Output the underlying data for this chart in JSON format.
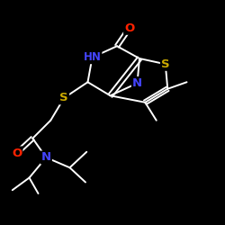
{
  "bg_color": "#000000",
  "bond_color": "#ffffff",
  "atom_colors": {
    "O": "#ff2200",
    "N": "#4444ff",
    "S": "#ccaa00",
    "C": "#ffffff"
  },
  "figsize": [
    2.5,
    2.5
  ],
  "dpi": 100
}
